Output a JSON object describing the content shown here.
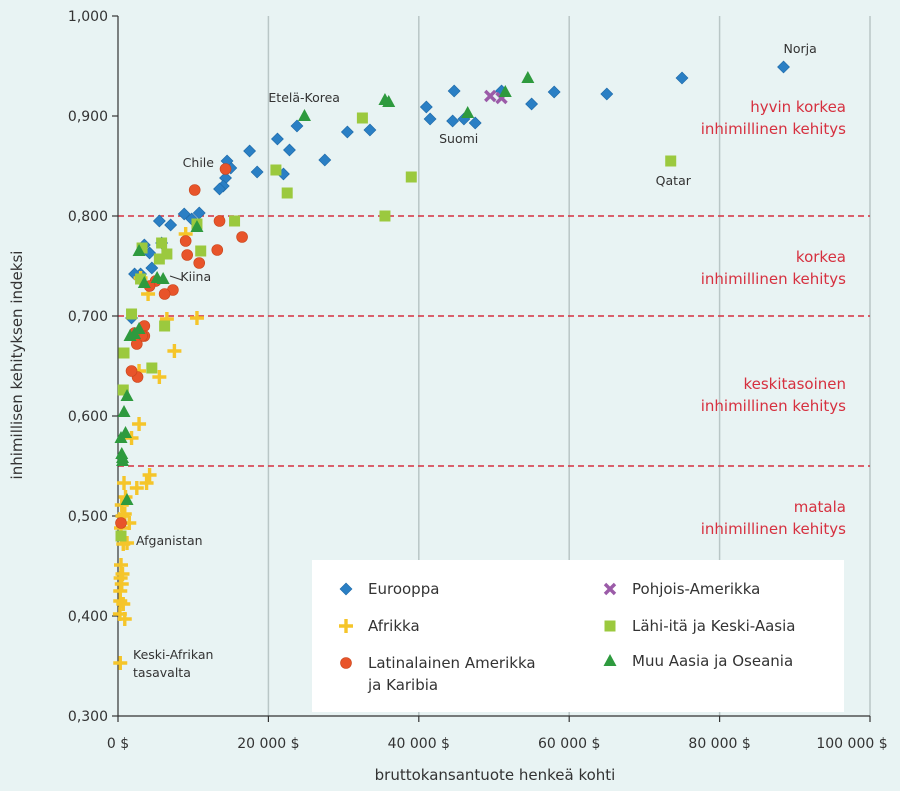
{
  "chart_data": {
    "type": "scatter",
    "xlabel": "bruttokansantuote henkeä kohti",
    "ylabel": "inhimillisen kehityksen indeksi",
    "xlim": [
      0,
      100000
    ],
    "ylim": [
      0.3,
      1.0
    ],
    "x_ticks": [
      0,
      20000,
      40000,
      60000,
      80000,
      100000
    ],
    "x_tick_labels": [
      "0 $",
      "20 000 $",
      "40 000 $",
      "60 000 $",
      "80 000 $",
      "100 000 $"
    ],
    "y_ticks": [
      0.3,
      0.4,
      0.5,
      0.6,
      0.7,
      0.8,
      0.9,
      1.0
    ],
    "y_tick_labels": [
      "0,300",
      "0,400",
      "0,500",
      "0,600",
      "0,700",
      "0,800",
      "0,900",
      "1,000"
    ],
    "grid": "vertical",
    "thresholds": [
      {
        "y": 0.8,
        "label1": "hyvin korkea",
        "label2": "inhimillinen kehitys",
        "label_y": 0.9
      },
      {
        "y": 0.7,
        "label1": "korkea",
        "label2": "inhimillinen kehitys",
        "label_y": 0.75
      },
      {
        "y": 0.55,
        "label1": "keskitasoinen",
        "label2": "inhimillinen kehitys",
        "label_y": 0.623
      },
      {
        "label1": "matala",
        "label2": "inhimillinen kehitys",
        "label_y": 0.5
      }
    ],
    "legend_position": "bottom-right",
    "annotations": [
      {
        "text": "Norja",
        "x": 88500,
        "y": 0.963
      },
      {
        "text": "Etelä-Korea",
        "x": 20000,
        "y": 0.914
      },
      {
        "text": "Suomi",
        "x": 42700,
        "y": 0.873
      },
      {
        "text": "Chile",
        "x": 8600,
        "y": 0.849
      },
      {
        "text": "Qatar",
        "x": 71500,
        "y": 0.831
      },
      {
        "text": "Kiina",
        "x": 8300,
        "y": 0.735
      },
      {
        "text": "Afganistan",
        "x": 2400,
        "y": 0.471
      },
      {
        "text": "Keski-Afrikan",
        "x": 2000,
        "y": 0.357
      },
      {
        "text": "tasavalta",
        "x": 2000,
        "y": 0.339
      }
    ],
    "series": [
      {
        "name": "Eurooppa",
        "color": "#2a7fc4",
        "marker": "diamond",
        "legend_lines": [
          "Eurooppa"
        ],
        "points": [
          [
            88500,
            0.949
          ],
          [
            75000,
            0.938
          ],
          [
            65000,
            0.922
          ],
          [
            58000,
            0.924
          ],
          [
            55000,
            0.912
          ],
          [
            51000,
            0.925
          ],
          [
            47500,
            0.893
          ],
          [
            46000,
            0.897
          ],
          [
            44700,
            0.925
          ],
          [
            44500,
            0.895
          ],
          [
            41500,
            0.897
          ],
          [
            41000,
            0.909
          ],
          [
            33500,
            0.886
          ],
          [
            30500,
            0.884
          ],
          [
            27500,
            0.856
          ],
          [
            23800,
            0.89
          ],
          [
            22800,
            0.866
          ],
          [
            22000,
            0.842
          ],
          [
            21200,
            0.877
          ],
          [
            18500,
            0.844
          ],
          [
            17500,
            0.865
          ],
          [
            15000,
            0.848
          ],
          [
            14500,
            0.855
          ],
          [
            14300,
            0.838
          ],
          [
            14000,
            0.83
          ],
          [
            13500,
            0.827
          ],
          [
            10800,
            0.803
          ],
          [
            9800,
            0.797
          ],
          [
            8800,
            0.802
          ],
          [
            7000,
            0.791
          ],
          [
            5500,
            0.795
          ],
          [
            5800,
            0.773
          ],
          [
            4200,
            0.763
          ],
          [
            3500,
            0.771
          ],
          [
            4500,
            0.748
          ],
          [
            3000,
            0.742
          ],
          [
            1800,
            0.698
          ],
          [
            2200,
            0.742
          ]
        ]
      },
      {
        "name": "Afrikka",
        "color": "#f5c52a",
        "marker": "plus",
        "legend_lines": [
          "Afrikka"
        ],
        "points": [
          [
            10500,
            0.698
          ],
          [
            9000,
            0.782
          ],
          [
            7500,
            0.665
          ],
          [
            6500,
            0.697
          ],
          [
            5500,
            0.639
          ],
          [
            4000,
            0.722
          ],
          [
            4200,
            0.541
          ],
          [
            3800,
            0.533
          ],
          [
            2800,
            0.592
          ],
          [
            2500,
            0.528
          ],
          [
            1800,
            0.578
          ],
          [
            1500,
            0.493
          ],
          [
            1200,
            0.473
          ],
          [
            1000,
            0.519
          ],
          [
            900,
            0.502
          ],
          [
            800,
            0.533
          ],
          [
            700,
            0.472
          ],
          [
            600,
            0.5
          ],
          [
            500,
            0.511
          ],
          [
            400,
            0.451
          ],
          [
            350,
            0.438
          ],
          [
            300,
            0.425
          ],
          [
            250,
            0.402
          ],
          [
            500,
            0.432
          ],
          [
            700,
            0.412
          ],
          [
            900,
            0.397
          ],
          [
            600,
            0.442
          ],
          [
            300,
            0.415
          ],
          [
            400,
            0.488
          ],
          [
            2800,
            0.645
          ],
          [
            3000,
            0.738
          ],
          [
            300,
            0.353
          ]
        ]
      },
      {
        "name": "Latinalainen Amerikka ja Karibia",
        "color": "#e8542a",
        "marker": "circle",
        "legend_lines": [
          "Latinalainen Amerikka",
          "ja Karibia"
        ],
        "points": [
          [
            10200,
            0.826
          ],
          [
            14300,
            0.847
          ],
          [
            16500,
            0.779
          ],
          [
            13500,
            0.795
          ],
          [
            13200,
            0.766
          ],
          [
            10800,
            0.753
          ],
          [
            9200,
            0.761
          ],
          [
            9000,
            0.775
          ],
          [
            7300,
            0.726
          ],
          [
            6200,
            0.722
          ],
          [
            5000,
            0.735
          ],
          [
            4200,
            0.73
          ],
          [
            3500,
            0.69
          ],
          [
            3500,
            0.68
          ],
          [
            3200,
            0.68
          ],
          [
            2500,
            0.672
          ],
          [
            2200,
            0.683
          ],
          [
            2600,
            0.639
          ],
          [
            1800,
            0.645
          ],
          [
            400,
            0.493
          ]
        ]
      },
      {
        "name": "Pohjois-Amerikka",
        "color": "#9b5ba8",
        "marker": "cross",
        "legend_lines": [
          "Pohjois-Amerikka"
        ],
        "points": [
          [
            49500,
            0.92
          ],
          [
            51000,
            0.918
          ]
        ]
      },
      {
        "name": "Lähi-itä ja Keski-Aasia",
        "color": "#9bc93e",
        "marker": "square",
        "legend_lines": [
          "Lähi-itä ja Keski-Aasia"
        ],
        "points": [
          [
            73500,
            0.855
          ],
          [
            39000,
            0.839
          ],
          [
            32500,
            0.898
          ],
          [
            35500,
            0.8
          ],
          [
            22500,
            0.823
          ],
          [
            21000,
            0.846
          ],
          [
            15500,
            0.795
          ],
          [
            11000,
            0.765
          ],
          [
            10500,
            0.792
          ],
          [
            6500,
            0.762
          ],
          [
            5800,
            0.773
          ],
          [
            5500,
            0.757
          ],
          [
            6200,
            0.69
          ],
          [
            4500,
            0.648
          ],
          [
            3200,
            0.768
          ],
          [
            3000,
            0.737
          ],
          [
            1800,
            0.702
          ],
          [
            800,
            0.663
          ],
          [
            700,
            0.626
          ],
          [
            400,
            0.48
          ]
        ]
      },
      {
        "name": "Muu Aasia ja Oseania",
        "color": "#2e9a3e",
        "marker": "triangle",
        "legend_lines": [
          "Muu Aasia ja Oseania"
        ],
        "points": [
          [
            54500,
            0.938
          ],
          [
            51500,
            0.924
          ],
          [
            46500,
            0.903
          ],
          [
            36000,
            0.914
          ],
          [
            35500,
            0.916
          ],
          [
            24800,
            0.9
          ],
          [
            10500,
            0.789
          ],
          [
            6000,
            0.737
          ],
          [
            5200,
            0.738
          ],
          [
            3500,
            0.733
          ],
          [
            2800,
            0.765
          ],
          [
            2200,
            0.682
          ],
          [
            1600,
            0.68
          ],
          [
            1200,
            0.62
          ],
          [
            1000,
            0.583
          ],
          [
            800,
            0.604
          ],
          [
            600,
            0.558
          ],
          [
            500,
            0.562
          ],
          [
            600,
            0.555
          ],
          [
            400,
            0.578
          ],
          [
            1200,
            0.516
          ],
          [
            2800,
            0.687
          ]
        ]
      }
    ]
  }
}
